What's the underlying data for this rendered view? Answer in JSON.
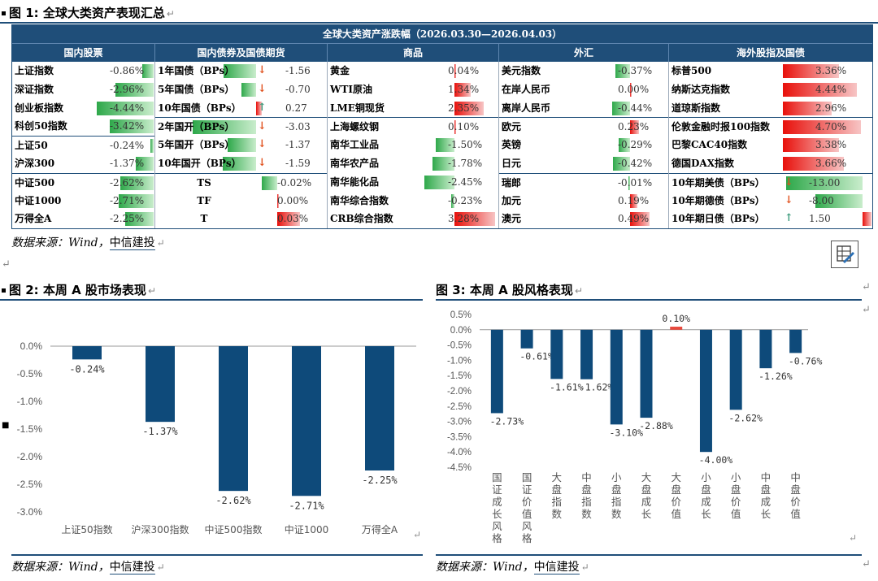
{
  "fig1": {
    "title": "图 1: 全球大类资产表现汇总",
    "table_title": "全球大类资产涨跌幅（2026.03.30—2026.04.03）",
    "col_headers": [
      "国内股票",
      "国内债券及国债期货",
      "商品",
      "外汇",
      "海外股指及国债"
    ],
    "stocks": [
      {
        "name": "上证指数",
        "value": "-0.86%",
        "num": -0.86
      },
      {
        "name": "深证指数",
        "value": "-2.96%",
        "num": -2.96
      },
      {
        "name": "创业板指数",
        "value": "-4.44%",
        "num": -4.44
      },
      {
        "name": "科创50指数",
        "value": "-3.42%",
        "num": -3.42
      },
      {
        "name": "上证50",
        "value": "-0.24%",
        "num": -0.24
      },
      {
        "name": "沪深300",
        "value": "-1.37%",
        "num": -1.37
      },
      {
        "name": "中证500",
        "value": "-2.62%",
        "num": -2.62
      },
      {
        "name": "中证1000",
        "value": "-2.71%",
        "num": -2.71
      },
      {
        "name": "万得全A",
        "value": "-2.25%",
        "num": -2.25
      }
    ],
    "bonds": [
      {
        "name": "1年国债（BPs）",
        "arrow": "down",
        "value": "-1.56",
        "num": -1.56
      },
      {
        "name": "5年国债（BPs）",
        "arrow": "down",
        "value": "-0.70",
        "num": -0.7
      },
      {
        "name": "10年国债（BPs）",
        "arrow": "up",
        "value": "0.27",
        "num": 0.27
      },
      {
        "name": "2年国开（BPs）",
        "arrow": "down",
        "value": "-3.03",
        "num": -3.03
      },
      {
        "name": "5年国开（BPs）",
        "arrow": "down",
        "value": "-1.37",
        "num": -1.37
      },
      {
        "name": "10年国开（BPs）",
        "arrow": "down",
        "value": "-1.59",
        "num": -1.59
      }
    ],
    "futures": [
      {
        "name": "TS",
        "value": "-0.02%",
        "num": -0.02
      },
      {
        "name": "TF",
        "value": "0.00%",
        "num": 0.0
      },
      {
        "name": "T",
        "value": "0.03%",
        "num": 0.03
      }
    ],
    "commodities": [
      {
        "name": "黄金",
        "value": "0.04%",
        "num": 0.04
      },
      {
        "name": "WTI原油",
        "value": "1.34%",
        "num": 1.34
      },
      {
        "name": "LME铜现货",
        "value": "2.35%",
        "num": 2.35
      },
      {
        "name": "上海螺纹钢",
        "value": "0.10%",
        "num": 0.1
      },
      {
        "name": "南华工业品",
        "value": "-1.50%",
        "num": -1.5
      },
      {
        "name": "南华农产品",
        "value": "-1.78%",
        "num": -1.78
      },
      {
        "name": "南华能化品",
        "value": "-2.45%",
        "num": -2.45
      },
      {
        "name": "南华综合指数",
        "value": "-0.23%",
        "num": -0.23
      },
      {
        "name": "CRB综合指数",
        "value": "3.28%",
        "num": 3.28
      }
    ],
    "fx": [
      {
        "name": "美元指数",
        "value": "-0.37%",
        "num": -0.37
      },
      {
        "name": "在岸人民币",
        "value": "0.00%",
        "num": 0.0
      },
      {
        "name": "离岸人民币",
        "value": "-0.44%",
        "num": -0.44
      },
      {
        "name": "欧元",
        "value": "0.23%",
        "num": 0.23
      },
      {
        "name": "英镑",
        "value": "-0.29%",
        "num": -0.29
      },
      {
        "name": "日元",
        "value": "-0.42%",
        "num": -0.42
      },
      {
        "name": "瑞郎",
        "value": "-0.01%",
        "num": -0.01
      },
      {
        "name": "加元",
        "value": "0.19%",
        "num": 0.19
      },
      {
        "name": "澳元",
        "value": "0.49%",
        "num": 0.49
      }
    ],
    "overseas": [
      {
        "name": "标普500",
        "value": "3.36%",
        "num": 3.36
      },
      {
        "name": "纳斯达克指数",
        "value": "4.44%",
        "num": 4.44
      },
      {
        "name": "道琼斯指数",
        "value": "2.96%",
        "num": 2.96
      },
      {
        "name": "伦敦金融时报100指数",
        "value": "4.70%",
        "num": 4.7
      },
      {
        "name": "巴黎CAC40指数",
        "value": "3.38%",
        "num": 3.38
      },
      {
        "name": "德国DAX指数",
        "value": "3.66%",
        "num": 3.66
      }
    ],
    "overseas_bonds": [
      {
        "name": "10年期美债（BPs）",
        "arrow": "down",
        "value": "-13.00",
        "num": -13.0
      },
      {
        "name": "10年期德债（BPs）",
        "arrow": "down",
        "value": "-8.00",
        "num": -8.0
      },
      {
        "name": "10年期日债（BPs）",
        "arrow": "up",
        "value": "1.50",
        "num": 1.5
      }
    ],
    "source": "数据来源：Wind，",
    "source_org": "中信建投"
  },
  "fig2": {
    "title": "图 2: 本周 A 股市场表现",
    "source": "数据来源：Wind，",
    "source_org": "中信建投"
  },
  "fig3": {
    "title": "图 3: 本周 A 股风格表现",
    "source": "数据来源：Wind，",
    "source_org": "中信建投"
  },
  "chart_data": [
    {
      "type": "bar",
      "categories": [
        "上证50指数",
        "沪深300指数",
        "中证500指数",
        "中证1000",
        "万得全A"
      ],
      "values": [
        -0.24,
        -1.37,
        -2.62,
        -2.71,
        -2.25
      ],
      "data_labels": [
        "-0.24%",
        "-1.37%",
        "-2.62%",
        "-2.71%",
        "-2.25%"
      ],
      "yticks": [
        "0.0%",
        "-0.5%",
        "-1.0%",
        "-1.5%",
        "-2.0%",
        "-2.5%",
        "-3.0%"
      ],
      "ylim": [
        -3.0,
        0.0
      ],
      "grid": false,
      "color": "#0e4a7a"
    },
    {
      "type": "bar",
      "categories": [
        "国证成长风格",
        "国证价值风格",
        "大盘指数",
        "中盘指数",
        "小盘指数",
        "大盘成长",
        "大盘价值",
        "小盘成长",
        "小盘价值",
        "中盘成长",
        "中盘价值"
      ],
      "values": [
        -2.73,
        -0.61,
        -1.61,
        -1.62,
        -3.1,
        -2.88,
        0.1,
        -4.0,
        -2.62,
        -1.26,
        -0.76
      ],
      "data_labels": [
        "-2.73%",
        "-0.61%",
        "-1.61%",
        "-1.62%",
        "-3.10%",
        "-2.88%",
        "0.10%",
        "-4.00%",
        "-2.62%",
        "-1.26%",
        "-0.76%"
      ],
      "yticks": [
        "0.5%",
        "0.0%",
        "-0.5%",
        "-1.0%",
        "-1.5%",
        "-2.0%",
        "-2.5%",
        "-3.0%",
        "-3.5%",
        "-4.0%",
        "-4.5%"
      ],
      "ylim": [
        -4.5,
        0.5
      ],
      "grid": false,
      "color": "#0e4a7a",
      "positive_color": "#e8483c"
    }
  ]
}
